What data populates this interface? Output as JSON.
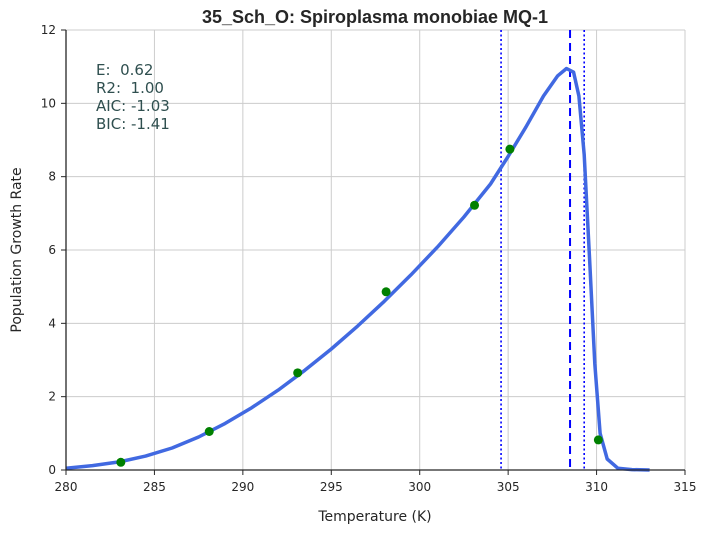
{
  "chart_data": {
    "type": "line",
    "title": "35_Sch_O: Spiroplasma monobiae MQ-1",
    "xlabel": "Temperature (K)",
    "ylabel": "Population Growth Rate",
    "xlim": [
      280,
      315
    ],
    "ylim": [
      0,
      12
    ],
    "xticks": [
      280,
      285,
      290,
      295,
      300,
      305,
      310,
      315
    ],
    "yticks": [
      0,
      2,
      4,
      6,
      8,
      10,
      12
    ],
    "grid": true,
    "annotations": [
      "E:  0.62",
      "R2:  1.00",
      "AIC: -1.03",
      "BIC: -1.41"
    ],
    "vlines": [
      {
        "x": 308.5,
        "style": "dashed"
      },
      {
        "x": 304.6,
        "style": "dotted"
      },
      {
        "x": 309.3,
        "style": "dotted"
      }
    ],
    "series": [
      {
        "kind": "line",
        "x": [
          280,
          281.5,
          283,
          284.5,
          286,
          287.5,
          289,
          290.5,
          292,
          293.5,
          295,
          296.5,
          298,
          299.5,
          301,
          302.5,
          304,
          305,
          306,
          307,
          307.8,
          308.3,
          308.7,
          309.0,
          309.3,
          309.6,
          309.9,
          310.2,
          310.6,
          311.2,
          312,
          313
        ],
        "y": [
          0.05,
          0.12,
          0.22,
          0.38,
          0.6,
          0.9,
          1.27,
          1.7,
          2.18,
          2.72,
          3.3,
          3.93,
          4.6,
          5.32,
          6.08,
          6.9,
          7.8,
          8.55,
          9.35,
          10.2,
          10.75,
          10.95,
          10.85,
          10.2,
          8.6,
          5.8,
          2.9,
          1.0,
          0.3,
          0.05,
          0.01,
          0.0
        ]
      },
      {
        "kind": "points",
        "x": [
          283.1,
          288.1,
          293.1,
          298.1,
          303.1,
          305.1,
          310.1
        ],
        "y": [
          0.21,
          1.05,
          2.65,
          4.86,
          7.22,
          8.75,
          0.82
        ]
      }
    ],
    "colors": {
      "curve": "#4169e1",
      "points": "#008000",
      "vline": "#0000ff",
      "grid": "#cccccc",
      "axis": "#262626",
      "annotation": "#2f4f4f"
    }
  }
}
